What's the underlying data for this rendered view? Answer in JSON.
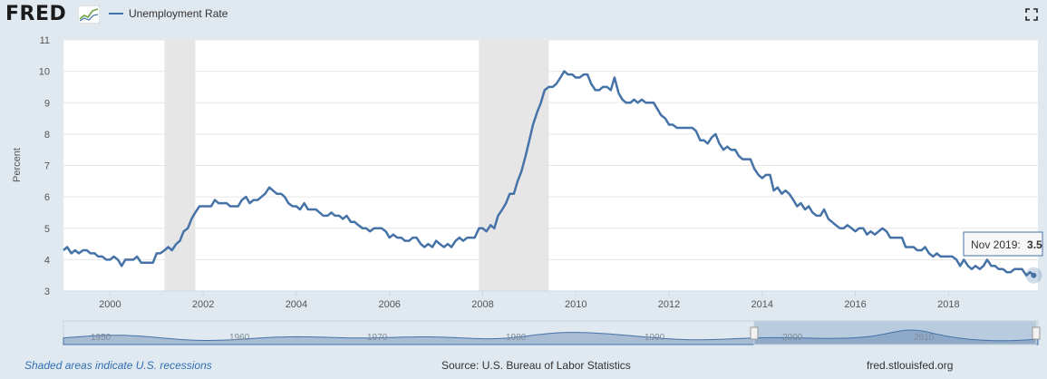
{
  "header": {
    "logo_text": "FRED",
    "legend_label": "Unemployment Rate"
  },
  "tooltip": {
    "date": "Nov 2019:",
    "value": "3.5"
  },
  "footer": {
    "recession_note": "Shaded areas indicate U.S. recessions",
    "source": "Source: U.S. Bureau of Labor Statistics",
    "site": "fred.stlouisfed.org"
  },
  "colors": {
    "line": "#4572a7",
    "recession": "#e6e6e6",
    "background": "#e1e9f0"
  },
  "chart_data": {
    "type": "line",
    "title": "",
    "ylabel": "Percent",
    "xlabel": "",
    "xlim": [
      1999.0,
      2019.92
    ],
    "ylim": [
      3,
      11
    ],
    "yticks": [
      "3",
      "4",
      "5",
      "6",
      "7",
      "8",
      "9",
      "10",
      "11"
    ],
    "xticks": [
      "2000",
      "2002",
      "2004",
      "2006",
      "2008",
      "2010",
      "2012",
      "2014",
      "2016",
      "2018"
    ],
    "grid": true,
    "legend": "top-left",
    "recessions": [
      [
        2001.17,
        2001.83
      ],
      [
        2007.92,
        2009.42
      ]
    ],
    "navigator_ticks": [
      "1950",
      "1960",
      "1970",
      "1980",
      "1990",
      "2000",
      "2010"
    ],
    "series": [
      {
        "name": "Unemployment Rate",
        "x": [
          1999.0,
          1999.08,
          1999.17,
          1999.25,
          1999.33,
          1999.42,
          1999.5,
          1999.58,
          1999.67,
          1999.75,
          1999.83,
          1999.92,
          2000.0,
          2000.08,
          2000.17,
          2000.25,
          2000.33,
          2000.42,
          2000.5,
          2000.58,
          2000.67,
          2000.75,
          2000.83,
          2000.92,
          2001.0,
          2001.08,
          2001.17,
          2001.25,
          2001.33,
          2001.42,
          2001.5,
          2001.58,
          2001.67,
          2001.75,
          2001.83,
          2001.92,
          2002.0,
          2002.08,
          2002.17,
          2002.25,
          2002.33,
          2002.42,
          2002.5,
          2002.58,
          2002.67,
          2002.75,
          2002.83,
          2002.92,
          2003.0,
          2003.08,
          2003.17,
          2003.25,
          2003.33,
          2003.42,
          2003.5,
          2003.58,
          2003.67,
          2003.75,
          2003.83,
          2003.92,
          2004.0,
          2004.08,
          2004.17,
          2004.25,
          2004.33,
          2004.42,
          2004.5,
          2004.58,
          2004.67,
          2004.75,
          2004.83,
          2004.92,
          2005.0,
          2005.08,
          2005.17,
          2005.25,
          2005.33,
          2005.42,
          2005.5,
          2005.58,
          2005.67,
          2005.75,
          2005.83,
          2005.92,
          2006.0,
          2006.08,
          2006.17,
          2006.25,
          2006.33,
          2006.42,
          2006.5,
          2006.58,
          2006.67,
          2006.75,
          2006.83,
          2006.92,
          2007.0,
          2007.08,
          2007.17,
          2007.25,
          2007.33,
          2007.42,
          2007.5,
          2007.58,
          2007.67,
          2007.75,
          2007.83,
          2007.92,
          2008.0,
          2008.08,
          2008.17,
          2008.25,
          2008.33,
          2008.42,
          2008.5,
          2008.58,
          2008.67,
          2008.75,
          2008.83,
          2008.92,
          2009.0,
          2009.08,
          2009.17,
          2009.25,
          2009.33,
          2009.42,
          2009.5,
          2009.58,
          2009.67,
          2009.75,
          2009.83,
          2009.92,
          2010.0,
          2010.08,
          2010.17,
          2010.25,
          2010.33,
          2010.42,
          2010.5,
          2010.58,
          2010.67,
          2010.75,
          2010.83,
          2010.92,
          2011.0,
          2011.08,
          2011.17,
          2011.25,
          2011.33,
          2011.42,
          2011.5,
          2011.58,
          2011.67,
          2011.75,
          2011.83,
          2011.92,
          2012.0,
          2012.08,
          2012.17,
          2012.25,
          2012.33,
          2012.42,
          2012.5,
          2012.58,
          2012.67,
          2012.75,
          2012.83,
          2012.92,
          2013.0,
          2013.08,
          2013.17,
          2013.25,
          2013.33,
          2013.42,
          2013.5,
          2013.58,
          2013.67,
          2013.75,
          2013.83,
          2013.92,
          2014.0,
          2014.08,
          2014.17,
          2014.25,
          2014.33,
          2014.42,
          2014.5,
          2014.58,
          2014.67,
          2014.75,
          2014.83,
          2014.92,
          2015.0,
          2015.08,
          2015.17,
          2015.25,
          2015.33,
          2015.42,
          2015.5,
          2015.58,
          2015.67,
          2015.75,
          2015.83,
          2015.92,
          2016.0,
          2016.08,
          2016.17,
          2016.25,
          2016.33,
          2016.42,
          2016.5,
          2016.58,
          2016.67,
          2016.75,
          2016.83,
          2016.92,
          2017.0,
          2017.08,
          2017.17,
          2017.25,
          2017.33,
          2017.42,
          2017.5,
          2017.58,
          2017.67,
          2017.75,
          2017.83,
          2017.92,
          2018.0,
          2018.08,
          2018.17,
          2018.25,
          2018.33,
          2018.42,
          2018.5,
          2018.58,
          2018.67,
          2018.75,
          2018.83,
          2018.92,
          2019.0,
          2019.08,
          2019.17,
          2019.25,
          2019.33,
          2019.42,
          2019.5,
          2019.58,
          2019.67,
          2019.75,
          2019.83
        ],
        "values": [
          4.3,
          4.4,
          4.2,
          4.3,
          4.2,
          4.3,
          4.3,
          4.2,
          4.2,
          4.1,
          4.1,
          4.0,
          4.0,
          4.1,
          4.0,
          3.8,
          4.0,
          4.0,
          4.0,
          4.1,
          3.9,
          3.9,
          3.9,
          3.9,
          4.2,
          4.2,
          4.3,
          4.4,
          4.3,
          4.5,
          4.6,
          4.9,
          5.0,
          5.3,
          5.5,
          5.7,
          5.7,
          5.7,
          5.7,
          5.9,
          5.8,
          5.8,
          5.8,
          5.7,
          5.7,
          5.7,
          5.9,
          6.0,
          5.8,
          5.9,
          5.9,
          6.0,
          6.1,
          6.3,
          6.2,
          6.1,
          6.1,
          6.0,
          5.8,
          5.7,
          5.7,
          5.6,
          5.8,
          5.6,
          5.6,
          5.6,
          5.5,
          5.4,
          5.4,
          5.5,
          5.4,
          5.4,
          5.3,
          5.4,
          5.2,
          5.2,
          5.1,
          5.0,
          5.0,
          4.9,
          5.0,
          5.0,
          5.0,
          4.9,
          4.7,
          4.8,
          4.7,
          4.7,
          4.6,
          4.6,
          4.7,
          4.7,
          4.5,
          4.4,
          4.5,
          4.4,
          4.6,
          4.5,
          4.4,
          4.5,
          4.4,
          4.6,
          4.7,
          4.6,
          4.7,
          4.7,
          4.7,
          5.0,
          5.0,
          4.9,
          5.1,
          5.0,
          5.4,
          5.6,
          5.8,
          6.1,
          6.1,
          6.5,
          6.8,
          7.3,
          7.8,
          8.3,
          8.7,
          9.0,
          9.4,
          9.5,
          9.5,
          9.6,
          9.8,
          10.0,
          9.9,
          9.9,
          9.8,
          9.8,
          9.9,
          9.9,
          9.6,
          9.4,
          9.4,
          9.5,
          9.5,
          9.4,
          9.8,
          9.3,
          9.1,
          9.0,
          9.0,
          9.1,
          9.0,
          9.1,
          9.0,
          9.0,
          9.0,
          8.8,
          8.6,
          8.5,
          8.3,
          8.3,
          8.2,
          8.2,
          8.2,
          8.2,
          8.2,
          8.1,
          7.8,
          7.8,
          7.7,
          7.9,
          8.0,
          7.7,
          7.5,
          7.6,
          7.5,
          7.5,
          7.3,
          7.2,
          7.2,
          7.2,
          6.9,
          6.7,
          6.6,
          6.7,
          6.7,
          6.2,
          6.3,
          6.1,
          6.2,
          6.1,
          5.9,
          5.7,
          5.8,
          5.6,
          5.7,
          5.5,
          5.4,
          5.4,
          5.6,
          5.3,
          5.2,
          5.1,
          5.0,
          5.0,
          5.1,
          5.0,
          4.9,
          5.0,
          5.0,
          4.8,
          4.9,
          4.8,
          4.9,
          5.0,
          4.9,
          4.7,
          4.7,
          4.7,
          4.7,
          4.4,
          4.4,
          4.4,
          4.3,
          4.3,
          4.4,
          4.2,
          4.1,
          4.2,
          4.1,
          4.1,
          4.1,
          4.1,
          4.0,
          3.8,
          4.0,
          3.8,
          3.7,
          3.8,
          3.7,
          3.8,
          4.0,
          3.8,
          3.8,
          3.7,
          3.7,
          3.6,
          3.6,
          3.7,
          3.7,
          3.7,
          3.5,
          3.6,
          3.5
        ]
      }
    ]
  }
}
